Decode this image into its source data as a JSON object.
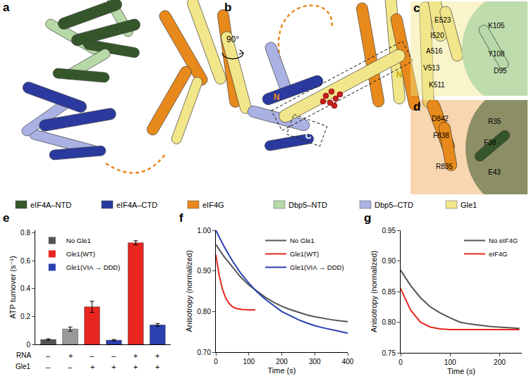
{
  "structure_panels": {
    "a": {
      "label": "a"
    },
    "b": {
      "label": "b",
      "rotation_label": "90°",
      "termini": [
        "N",
        "C",
        "N"
      ]
    },
    "c": {
      "label": "c",
      "residues": [
        "E523",
        "I520",
        "A516",
        "V513",
        "K511",
        "K105",
        "Y108",
        "D95"
      ]
    },
    "d": {
      "label": "d",
      "residues": [
        "D842",
        "F838",
        "R835",
        "R35",
        "F38",
        "E43"
      ]
    }
  },
  "structure_legend": [
    {
      "name": "eIF4A–NTD",
      "color": "#35562a"
    },
    {
      "name": "eIF4A–CTD",
      "color": "#2b3a9e"
    },
    {
      "name": "eIF4G",
      "color": "#e8891c"
    },
    {
      "name": "Dbp5–NTD",
      "color": "#b7d9a8"
    },
    {
      "name": "Dbp5–CTD",
      "color": "#aab1e3"
    },
    {
      "name": "Gle1",
      "color": "#f2e68a"
    }
  ],
  "chart_data": [
    {
      "panel": "e",
      "type": "bar",
      "categories": [
        null,
        null,
        null,
        null,
        null,
        null
      ],
      "values": [
        0.035,
        0.11,
        0.27,
        0.03,
        0.73,
        0.14
      ],
      "errors": [
        0.005,
        0.015,
        0.04,
        0.005,
        0.015,
        0.01
      ],
      "colors": [
        "#555555",
        "#9a9a9a",
        "#e8261f",
        "#2a3fb0",
        "#e8261f",
        "#2a3fb0"
      ],
      "ylabel": "ATP turnover (s⁻¹)",
      "ylim": [
        0,
        0.82
      ],
      "yticks": [
        0,
        0.2,
        0.4,
        0.6,
        0.8
      ],
      "tick_labels": "y",
      "grid": false,
      "legend": "top-left",
      "legend_items": [
        {
          "name": "No Gle1",
          "color": "#555555"
        },
        {
          "name": "Gle1(WT)",
          "color": "#e8261f"
        },
        {
          "name": "Gle1(VIA → DDD)",
          "color": "#2a3fb0"
        }
      ],
      "rows": [
        {
          "label": "RNA",
          "values": [
            "–",
            "+",
            "–",
            "–",
            "+",
            "+"
          ]
        },
        {
          "label": "Gle1",
          "values": [
            "–",
            "–",
            "+",
            "+",
            "+",
            "+"
          ]
        }
      ]
    },
    {
      "panel": "f",
      "type": "line",
      "xlabel": "Time (s)",
      "ylabel": "Anisotropy (normalized)",
      "xlim": [
        0,
        400
      ],
      "xticks": [
        0,
        100,
        200,
        300,
        400
      ],
      "ylim": [
        0.7,
        1.0
      ],
      "yticks": [
        {
          "value": 0.7,
          "label": "0.70"
        },
        {
          "value": 0.8,
          "label": "0.80"
        },
        {
          "value": 0.9,
          "label": "0.90"
        },
        {
          "value": 1.0,
          "label": "1.00"
        }
      ],
      "grid": false,
      "legend": "top-right",
      "series": [
        {
          "name": "No Gle1",
          "color": "#555555",
          "x": [
            0,
            25,
            50,
            75,
            100,
            125,
            150,
            175,
            200,
            225,
            250,
            275,
            300,
            325,
            350,
            375,
            400
          ],
          "values": [
            0.965,
            0.935,
            0.91,
            0.885,
            0.865,
            0.85,
            0.835,
            0.823,
            0.813,
            0.805,
            0.798,
            0.792,
            0.787,
            0.783,
            0.78,
            0.777,
            0.775
          ]
        },
        {
          "name": "Gle1(WT)",
          "color": "#e8261f",
          "x": [
            0,
            10,
            20,
            30,
            40,
            50,
            60,
            80,
            100,
            120
          ],
          "values": [
            0.94,
            0.89,
            0.855,
            0.833,
            0.82,
            0.812,
            0.808,
            0.805,
            0.804,
            0.804
          ]
        },
        {
          "name": "Gle1(VIA → DDD)",
          "color": "#2a3fb0",
          "x": [
            0,
            25,
            50,
            75,
            100,
            125,
            150,
            175,
            200,
            225,
            250,
            275,
            300,
            325,
            350,
            375,
            400
          ],
          "values": [
            1.0,
            0.96,
            0.925,
            0.895,
            0.87,
            0.848,
            0.83,
            0.815,
            0.8,
            0.79,
            0.78,
            0.772,
            0.765,
            0.76,
            0.755,
            0.751,
            0.747
          ]
        }
      ]
    },
    {
      "panel": "g",
      "type": "line",
      "xlabel": "Time (s)",
      "ylabel": "Anisotropy (normalized)",
      "xlim": [
        0,
        245
      ],
      "xticks": [
        0,
        100,
        200
      ],
      "ylim": [
        0.75,
        0.95
      ],
      "yticks": [
        0.75,
        {
          "value": 0.8,
          "label": "0.80"
        },
        0.85,
        {
          "value": 0.9,
          "label": "0.90"
        },
        0.95
      ],
      "grid": false,
      "legend": "top-right",
      "series": [
        {
          "name": "No eIF4G",
          "color": "#555555",
          "x": [
            0,
            20,
            40,
            60,
            80,
            100,
            120,
            140,
            160,
            180,
            200,
            220,
            240
          ],
          "values": [
            0.885,
            0.86,
            0.84,
            0.825,
            0.815,
            0.807,
            0.8,
            0.797,
            0.795,
            0.793,
            0.792,
            0.791,
            0.79
          ]
        },
        {
          "name": "eIF4G",
          "color": "#e8261f",
          "x": [
            0,
            20,
            40,
            60,
            80,
            100,
            120,
            140,
            160,
            180,
            200,
            220,
            240
          ],
          "values": [
            0.855,
            0.82,
            0.8,
            0.792,
            0.789,
            0.788,
            0.788,
            0.788,
            0.788,
            0.788,
            0.788,
            0.788,
            0.788
          ]
        }
      ]
    }
  ]
}
